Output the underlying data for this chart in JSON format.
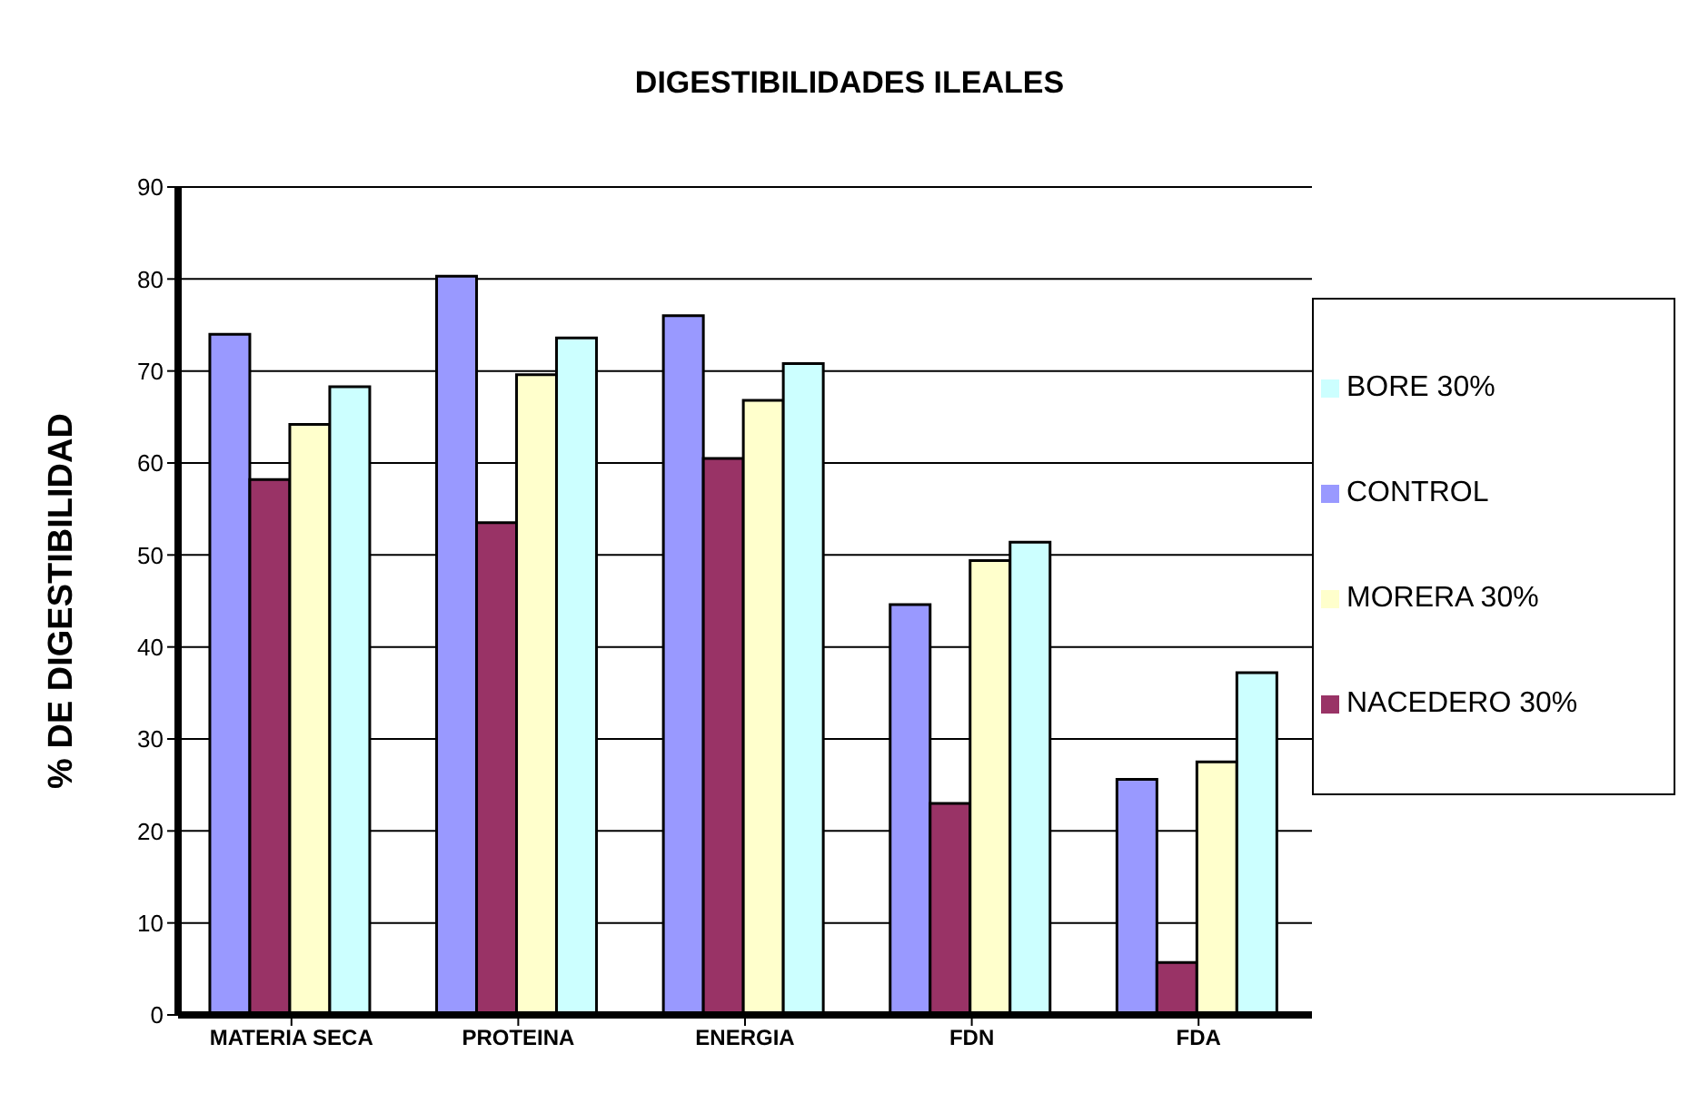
{
  "chart_data": {
    "type": "bar",
    "title": "DIGESTIBILIDADES ILEALES",
    "ylabel": "% DE DIGESTIBILIDAD",
    "categories": [
      "MATERIA SECA",
      "PROTEINA",
      "ENERGIA",
      "FDN",
      "FDA"
    ],
    "series": [
      {
        "name": "CONTROL",
        "color": "#9999ff",
        "values": [
          74,
          80.3,
          76,
          44.6,
          25.6
        ]
      },
      {
        "name": "NACEDERO 30%",
        "color": "#993366",
        "values": [
          58.2,
          53.5,
          60.5,
          23,
          5.7
        ]
      },
      {
        "name": "MORERA 30%",
        "color": "#ffffcc",
        "values": [
          64.2,
          69.6,
          66.8,
          49.4,
          27.5
        ]
      },
      {
        "name": "BORE 30%",
        "color": "#ccffff",
        "values": [
          68.3,
          73.6,
          70.8,
          51.4,
          37.2
        ]
      }
    ],
    "ylim": [
      0,
      90
    ],
    "yticks": [
      0,
      10,
      20,
      30,
      40,
      50,
      60,
      70,
      80,
      90
    ],
    "grid": "y",
    "legend": "right"
  }
}
